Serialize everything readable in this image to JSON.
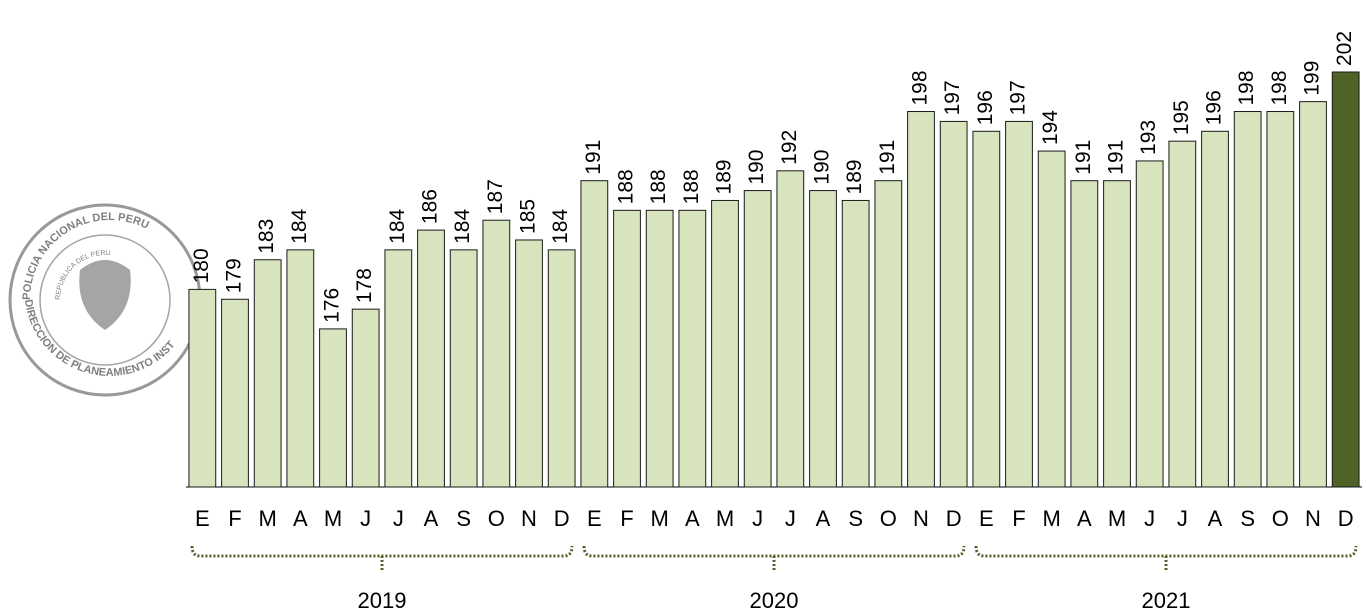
{
  "chart_data": {
    "type": "bar",
    "categories": [
      "E",
      "F",
      "M",
      "A",
      "M",
      "J",
      "J",
      "A",
      "S",
      "O",
      "N",
      "D",
      "E",
      "F",
      "M",
      "A",
      "M",
      "J",
      "J",
      "A",
      "S",
      "O",
      "N",
      "D",
      "E",
      "F",
      "M",
      "A",
      "M",
      "J",
      "J",
      "A",
      "S",
      "O",
      "N",
      "D"
    ],
    "values": [
      180,
      179,
      183,
      184,
      176,
      178,
      184,
      186,
      184,
      187,
      185,
      184,
      191,
      188,
      188,
      188,
      189,
      190,
      192,
      190,
      189,
      191,
      198,
      197,
      196,
      197,
      194,
      191,
      191,
      193,
      195,
      196,
      198,
      198,
      199,
      202
    ],
    "colors": [
      "#d7e4bd",
      "#d7e4bd",
      "#d7e4bd",
      "#d7e4bd",
      "#d7e4bd",
      "#d7e4bd",
      "#d7e4bd",
      "#d7e4bd",
      "#d7e4bd",
      "#d7e4bd",
      "#d7e4bd",
      "#d7e4bd",
      "#d7e4bd",
      "#d7e4bd",
      "#d7e4bd",
      "#d7e4bd",
      "#d7e4bd",
      "#d7e4bd",
      "#d7e4bd",
      "#d7e4bd",
      "#d7e4bd",
      "#d7e4bd",
      "#d7e4bd",
      "#d7e4bd",
      "#d7e4bd",
      "#d7e4bd",
      "#d7e4bd",
      "#d7e4bd",
      "#d7e4bd",
      "#d7e4bd",
      "#d7e4bd",
      "#d7e4bd",
      "#d7e4bd",
      "#d7e4bd",
      "#d7e4bd",
      "#4f6228"
    ],
    "ylim": [
      160,
      202
    ],
    "groups": [
      {
        "label": "2019",
        "start": 0,
        "end": 11
      },
      {
        "label": "2020",
        "start": 12,
        "end": 23
      },
      {
        "label": "2021",
        "start": 24,
        "end": 35
      }
    ],
    "watermark": {
      "top": "POLICIA NACIONAL DEL PERU",
      "bottom": "DIRECCION DE PLANEAMIENTO INST",
      "center": "REPUBLICA DEL PERU"
    }
  }
}
